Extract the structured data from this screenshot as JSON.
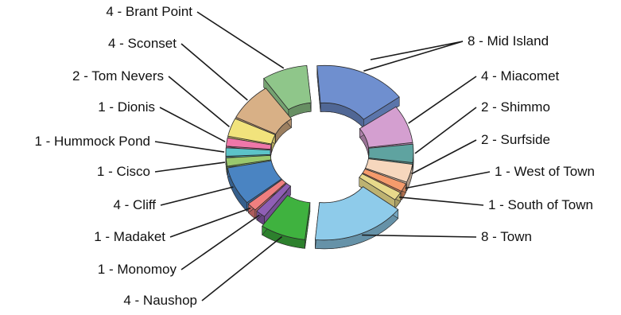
{
  "chart_data": {
    "type": "pie",
    "style": "3d-exploded-donut",
    "title": "",
    "slices": [
      {
        "label": "8 - Mid Island",
        "name": "Mid Island",
        "value": 8,
        "color": "#6f8fcf"
      },
      {
        "label": "4 - Miacomet",
        "name": "Miacomet",
        "value": 4,
        "color": "#d49fd0"
      },
      {
        "label": "2 - Shimmo",
        "name": "Shimmo",
        "value": 2,
        "color": "#5fa3a0"
      },
      {
        "label": "2 - Surfside",
        "name": "Surfside",
        "value": 2,
        "color": "#f6d7bd"
      },
      {
        "label": "1 - West of Town",
        "name": "West of Town",
        "value": 1,
        "color": "#f59b6c"
      },
      {
        "label": "1 - South of Town",
        "name": "South of Town",
        "value": 1,
        "color": "#e7d98a"
      },
      {
        "label": "8 - Town",
        "name": "Town",
        "value": 8,
        "color": "#8ecbea"
      },
      {
        "label": "4 - Naushop",
        "name": "Naushop",
        "value": 4,
        "color": "#3fb23f"
      },
      {
        "label": "1 - Monomoy",
        "name": "Monomoy",
        "value": 1,
        "color": "#8f5fb5"
      },
      {
        "label": "1 - Madaket",
        "name": "Madaket",
        "value": 1,
        "color": "#ef7f7f"
      },
      {
        "label": "4 - Cliff",
        "name": "Cliff",
        "value": 4,
        "color": "#4a84c2"
      },
      {
        "label": "1 - Cisco",
        "name": "Cisco",
        "value": 1,
        "color": "#9ac86d"
      },
      {
        "label": "1 - Hummock Pond",
        "name": "Hummock Pond",
        "value": 1,
        "color": "#5cc3c8"
      },
      {
        "label": "1 - Dionis",
        "name": "Dionis",
        "value": 1,
        "color": "#ef77a9"
      },
      {
        "label": "2 - Tom Nevers",
        "name": "Tom Nevers",
        "value": 2,
        "color": "#f1e37c"
      },
      {
        "label": "4 - Sconset",
        "name": "Sconset",
        "value": 4,
        "color": "#d8b086"
      },
      {
        "label": "4 - Brant Point",
        "name": "Brant Point",
        "value": 4,
        "color": "#8fc68a"
      }
    ],
    "exploded": [
      "Mid Island",
      "Town",
      "Naushop",
      "Brant Point"
    ],
    "legend": "none"
  }
}
